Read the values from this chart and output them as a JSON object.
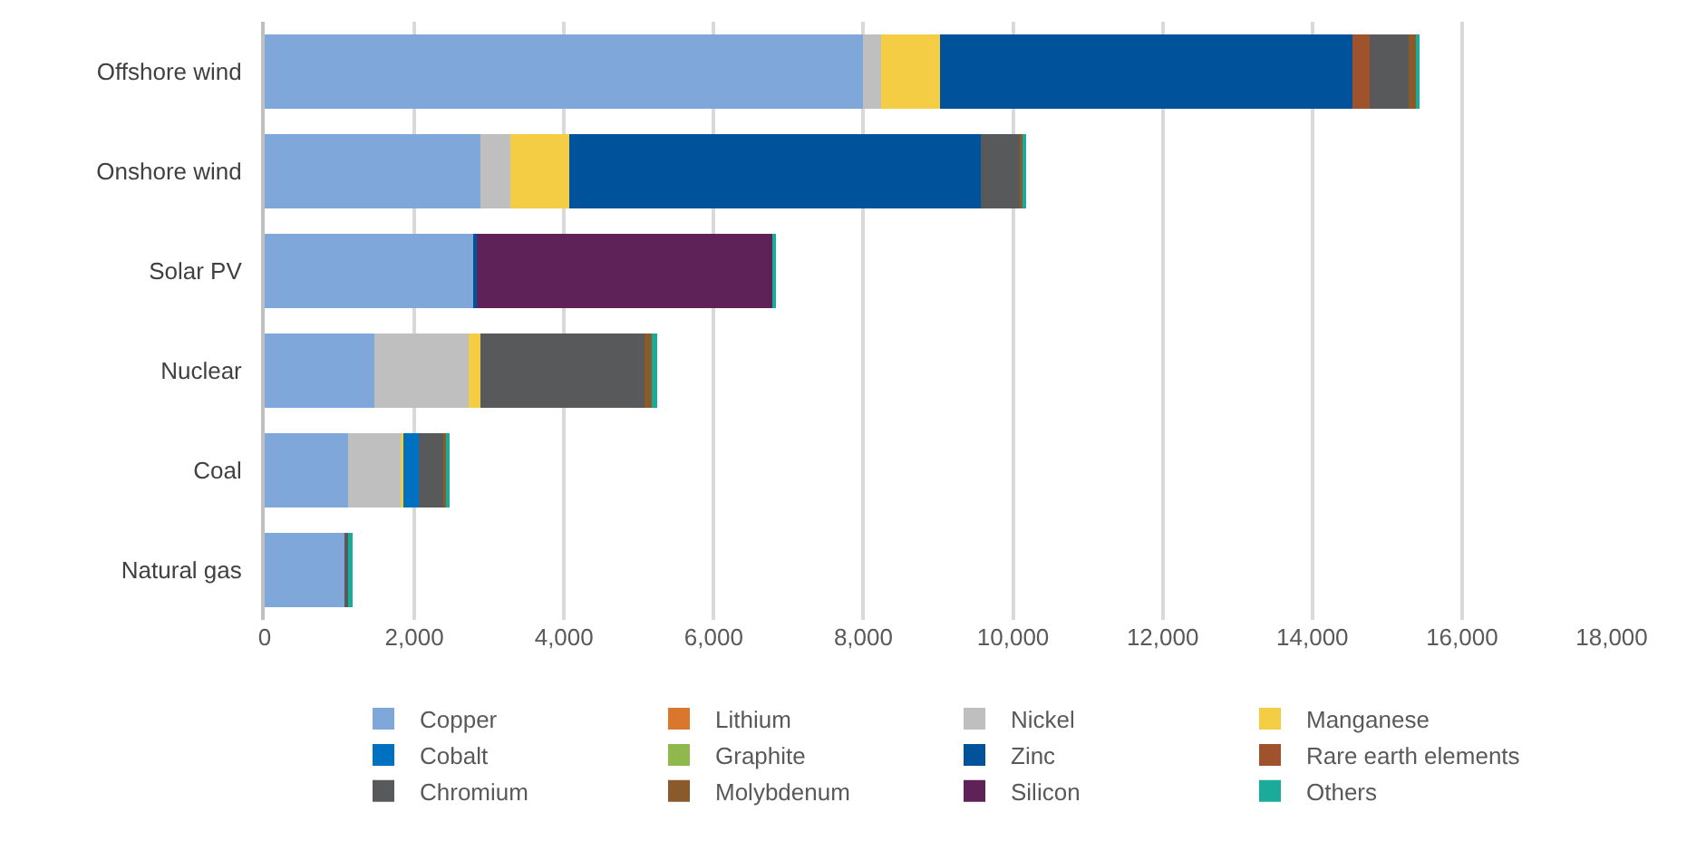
{
  "chart_data": {
    "type": "bar",
    "orientation": "horizontal",
    "stacked": true,
    "categories": [
      "Offshore wind",
      "Onshore wind",
      "Solar PV",
      "Nuclear",
      "Coal",
      "Natural gas"
    ],
    "series": [
      {
        "name": "Copper",
        "color": "#7fa7d9",
        "values": [
          8000,
          2880,
          2800,
          1470,
          1110,
          1090
        ]
      },
      {
        "name": "Lithium",
        "color": "#d9782d",
        "values": [
          null,
          null,
          null,
          null,
          null,
          null
        ]
      },
      {
        "name": "Nickel",
        "color": "#bfbfbf",
        "values": [
          240,
          400,
          null,
          1260,
          720,
          null
        ]
      },
      {
        "name": "Manganese",
        "color": "#f5cd45",
        "values": [
          790,
          790,
          null,
          150,
          20,
          null
        ]
      },
      {
        "name": "Cobalt",
        "color": "#0070c0",
        "values": [
          null,
          null,
          null,
          null,
          210,
          null
        ]
      },
      {
        "name": "Graphite",
        "color": "#8fb84d",
        "values": [
          null,
          null,
          null,
          null,
          null,
          null
        ]
      },
      {
        "name": "Zinc",
        "color": "#00529b",
        "values": [
          5500,
          5500,
          30,
          null,
          null,
          null
        ]
      },
      {
        "name": "Rare earth elements",
        "color": "#a0522d",
        "values": [
          240,
          null,
          null,
          null,
          null,
          null
        ]
      },
      {
        "name": "Chromium",
        "color": "#58595b",
        "values": [
          520,
          520,
          null,
          2190,
          330,
          40
        ]
      },
      {
        "name": "Molybdenum",
        "color": "#8b5a2b",
        "values": [
          100,
          50,
          null,
          100,
          50,
          null
        ]
      },
      {
        "name": "Silicon",
        "color": "#5e2259",
        "values": [
          null,
          null,
          3960,
          null,
          null,
          null
        ]
      },
      {
        "name": "Others",
        "color": "#1aab9b",
        "values": [
          20,
          30,
          30,
          80,
          30,
          40
        ]
      }
    ],
    "xlim": [
      0,
      18000
    ],
    "xticks": [
      {
        "value": 0,
        "label": "0"
      },
      {
        "value": 2000,
        "label": "2,000"
      },
      {
        "value": 4000,
        "label": "4,000"
      },
      {
        "value": 6000,
        "label": "6,000"
      },
      {
        "value": 8000,
        "label": "8,000"
      },
      {
        "value": 10000,
        "label": "10,000"
      },
      {
        "value": 12000,
        "label": "12,000"
      },
      {
        "value": 14000,
        "label": "14,000"
      },
      {
        "value": 16000,
        "label": "16,000"
      },
      {
        "value": 18000,
        "label": "18,000"
      }
    ],
    "grid": "x",
    "legend": "bottom"
  }
}
